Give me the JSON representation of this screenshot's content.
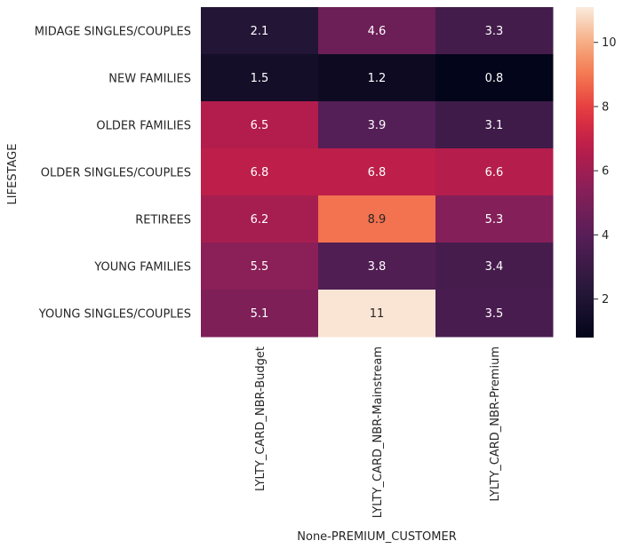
{
  "chart_data": {
    "type": "heatmap",
    "title": "",
    "xlabel": "None-PREMIUM_CUSTOMER",
    "ylabel": "LIFESTAGE",
    "rows": [
      "MIDAGE SINGLES/COUPLES",
      "NEW FAMILIES",
      "OLDER FAMILIES",
      "OLDER SINGLES/COUPLES",
      "RETIREES",
      "YOUNG FAMILIES",
      "YOUNG SINGLES/COUPLES"
    ],
    "columns": [
      "LYLTY_CARD_NBR-Budget",
      "LYLTY_CARD_NBR-Mainstream",
      "LYLTY_CARD_NBR-Premium"
    ],
    "values": [
      [
        2.1,
        4.6,
        3.3
      ],
      [
        1.5,
        1.2,
        0.8
      ],
      [
        6.5,
        3.9,
        3.1
      ],
      [
        6.8,
        6.8,
        6.6
      ],
      [
        6.2,
        8.9,
        5.3
      ],
      [
        5.5,
        3.8,
        3.4
      ],
      [
        5.1,
        11,
        3.5
      ]
    ],
    "cell_labels": [
      [
        "2.1",
        "4.6",
        "3.3"
      ],
      [
        "1.5",
        "1.2",
        "0.8"
      ],
      [
        "6.5",
        "3.9",
        "3.1"
      ],
      [
        "6.8",
        "6.8",
        "6.6"
      ],
      [
        "6.2",
        "8.9",
        "5.3"
      ],
      [
        "5.5",
        "3.8",
        "3.4"
      ],
      [
        "5.1",
        "11",
        "3.5"
      ]
    ],
    "colorbar": {
      "range": [
        0.8,
        11.1
      ],
      "ticks": [
        2,
        4,
        6,
        8,
        10
      ],
      "tick_labels": [
        "2",
        "4",
        "6",
        "8",
        "10"
      ]
    },
    "colormap": "rocket",
    "grid": false,
    "legend": "colorbar-right"
  }
}
